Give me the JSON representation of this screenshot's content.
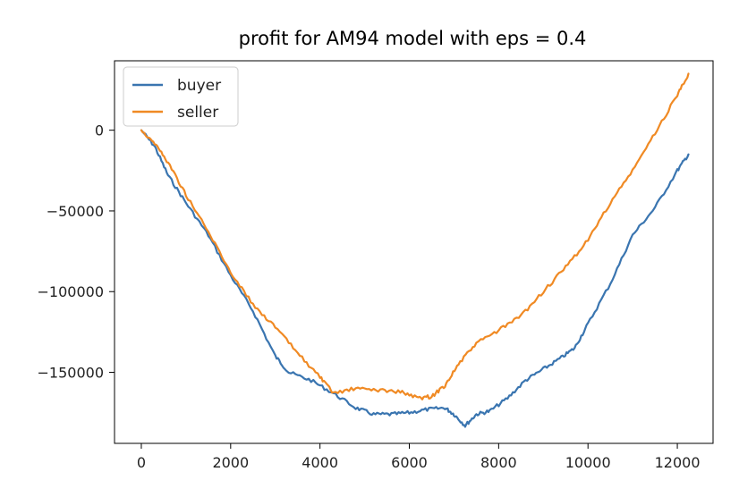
{
  "chart_data": {
    "type": "line",
    "title": "profit for AM94 model with eps = 0.4",
    "xlabel": "",
    "ylabel": "",
    "xlim": [
      -600,
      12800
    ],
    "ylim": [
      -194000,
      43000
    ],
    "x_ticks": [
      0,
      2000,
      4000,
      6000,
      8000,
      10000,
      12000
    ],
    "x_tick_labels": [
      "0",
      "2000",
      "4000",
      "6000",
      "8000",
      "10000",
      "12000"
    ],
    "y_ticks": [
      0,
      -50000,
      -100000,
      -150000
    ],
    "y_tick_labels": [
      "0",
      "−50000",
      "−100000",
      "−150000"
    ],
    "grid": false,
    "legend_position": "top-left",
    "series": [
      {
        "name": "buyer",
        "color": "#3a75b0",
        "points": [
          [
            0,
            0
          ],
          [
            300,
            -10000
          ],
          [
            600,
            -28000
          ],
          [
            1000,
            -45000
          ],
          [
            1500,
            -65000
          ],
          [
            2000,
            -90000
          ],
          [
            2500,
            -112000
          ],
          [
            3000,
            -140000
          ],
          [
            3300,
            -150000
          ],
          [
            3800,
            -155000
          ],
          [
            4300,
            -163000
          ],
          [
            4800,
            -172000
          ],
          [
            5200,
            -176000
          ],
          [
            5600,
            -176000
          ],
          [
            6000,
            -175000
          ],
          [
            6400,
            -173000
          ],
          [
            6800,
            -172000
          ],
          [
            7000,
            -176000
          ],
          [
            7250,
            -183000
          ],
          [
            7500,
            -176000
          ],
          [
            7800,
            -174000
          ],
          [
            8200,
            -166000
          ],
          [
            8600,
            -155000
          ],
          [
            9000,
            -148000
          ],
          [
            9400,
            -141000
          ],
          [
            9700,
            -135000
          ],
          [
            10000,
            -120000
          ],
          [
            10500,
            -95000
          ],
          [
            11000,
            -65000
          ],
          [
            11500,
            -48000
          ],
          [
            12000,
            -25000
          ],
          [
            12250,
            -15000
          ]
        ]
      },
      {
        "name": "seller",
        "color": "#f08a24",
        "points": [
          [
            0,
            0
          ],
          [
            300,
            -8000
          ],
          [
            600,
            -20000
          ],
          [
            1000,
            -40000
          ],
          [
            1500,
            -63000
          ],
          [
            2000,
            -88000
          ],
          [
            2500,
            -108000
          ],
          [
            3000,
            -122000
          ],
          [
            3500,
            -138000
          ],
          [
            4000,
            -153000
          ],
          [
            4300,
            -163000
          ],
          [
            4800,
            -160000
          ],
          [
            5300,
            -161000
          ],
          [
            5800,
            -162000
          ],
          [
            6200,
            -166000
          ],
          [
            6500,
            -165000
          ],
          [
            6800,
            -158000
          ],
          [
            7100,
            -145000
          ],
          [
            7500,
            -132000
          ],
          [
            8000,
            -124000
          ],
          [
            8500,
            -115000
          ],
          [
            9000,
            -100000
          ],
          [
            9500,
            -85000
          ],
          [
            10000,
            -68000
          ],
          [
            10500,
            -45000
          ],
          [
            11000,
            -25000
          ],
          [
            11500,
            -2000
          ],
          [
            12000,
            22000
          ],
          [
            12250,
            35000
          ]
        ]
      }
    ]
  }
}
